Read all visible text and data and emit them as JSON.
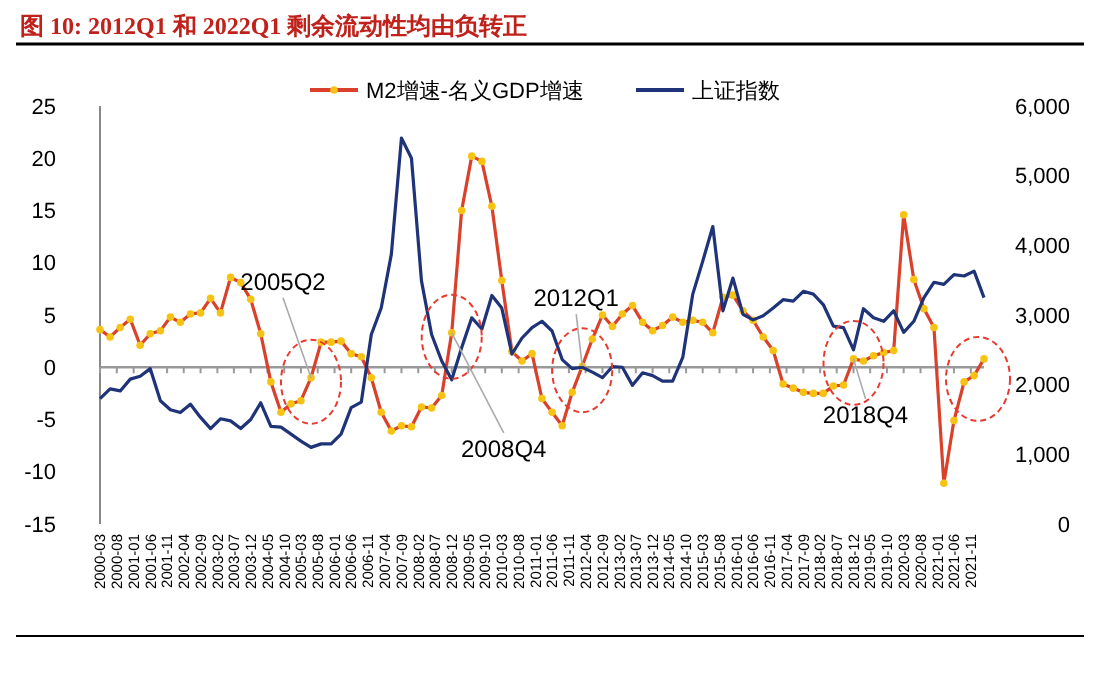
{
  "chart_data": {
    "type": "line",
    "title": "图 10: 2012Q1 和 2022Q1 剩余流动性均由负转正",
    "x": [
      "2000-03",
      "2000-06",
      "2000-09",
      "2000-12",
      "2001-03",
      "2001-06",
      "2001-09",
      "2001-12",
      "2002-03",
      "2002-06",
      "2002-09",
      "2002-12",
      "2003-03",
      "2003-06",
      "2003-09",
      "2003-12",
      "2004-03",
      "2004-06",
      "2004-09",
      "2004-12",
      "2005-03",
      "2005-06",
      "2005-09",
      "2005-12",
      "2006-03",
      "2006-06",
      "2006-09",
      "2006-12",
      "2007-03",
      "2007-06",
      "2007-09",
      "2007-12",
      "2008-03",
      "2008-06",
      "2008-09",
      "2008-12",
      "2009-03",
      "2009-06",
      "2009-09",
      "2009-12",
      "2010-03",
      "2010-06",
      "2010-09",
      "2010-12",
      "2011-03",
      "2011-06",
      "2011-09",
      "2011-12",
      "2012-03",
      "2012-06",
      "2012-09",
      "2012-12",
      "2013-03",
      "2013-06",
      "2013-09",
      "2013-12",
      "2014-03",
      "2014-06",
      "2014-09",
      "2014-12",
      "2015-03",
      "2015-06",
      "2015-09",
      "2015-12",
      "2016-03",
      "2016-06",
      "2016-09",
      "2016-12",
      "2017-03",
      "2017-06",
      "2017-09",
      "2017-12",
      "2018-03",
      "2018-06",
      "2018-09",
      "2018-12",
      "2019-03",
      "2019-06",
      "2019-09",
      "2019-12",
      "2020-03",
      "2020-06",
      "2020-09",
      "2020-12",
      "2021-03",
      "2021-06",
      "2021-09",
      "2021-12",
      "2022-03"
    ],
    "series": [
      {
        "name": "M2增速-名义GDP增速",
        "color": "#d9412b",
        "marker": "circle",
        "values": [
          3.6,
          2.9,
          3.8,
          4.6,
          2.1,
          3.2,
          3.5,
          4.8,
          4.3,
          5.1,
          5.2,
          6.6,
          5.2,
          8.6,
          8.1,
          6.5,
          3.2,
          -1.4,
          -4.3,
          -3.5,
          -3.2,
          -1.0,
          2.4,
          2.4,
          2.5,
          1.3,
          1.0,
          -1.0,
          -4.3,
          -6.1,
          -5.6,
          -5.7,
          -3.8,
          -3.9,
          -2.7,
          3.3,
          15,
          20.2,
          19.7,
          15.4,
          8.3,
          1.5,
          0.6,
          1.3,
          -3.0,
          -4.3,
          -5.6,
          -2.4,
          0.1,
          2.7,
          5.0,
          3.9,
          5.1,
          5.9,
          4.3,
          3.5,
          4.0,
          4.8,
          4.3,
          4.5,
          4.3,
          3.3,
          6.7,
          6.9,
          5.4,
          4.5,
          2.9,
          1.6,
          -1.6,
          -2.0,
          -2.4,
          -2.5,
          -2.5,
          -1.8,
          -1.7,
          0.8,
          0.6,
          1.1,
          1.4,
          1.6,
          14.6,
          8.4,
          5.6,
          3.8,
          -11.1,
          -5.1,
          -1.4,
          -0.8,
          0.8
        ]
      },
      {
        "name": "上证指数",
        "color": "#1f3478",
        "axis": "y2",
        "marker": "none",
        "values": [
          1800,
          1940,
          1910,
          2080,
          2120,
          2230,
          1770,
          1640,
          1600,
          1720,
          1530,
          1370,
          1510,
          1480,
          1370,
          1500,
          1740,
          1400,
          1390,
          1290,
          1190,
          1100,
          1150,
          1150,
          1290,
          1670,
          1750,
          2720,
          3100,
          3870,
          5540,
          5250,
          3490,
          2720,
          2340,
          2070,
          2530,
          2960,
          2800,
          3280,
          3100,
          2440,
          2670,
          2820,
          2910,
          2770,
          2360,
          2230,
          2250,
          2180,
          2100,
          2260,
          2250,
          1990,
          2170,
          2130,
          2050,
          2050,
          2390,
          3300,
          3770,
          4270,
          3060,
          3530,
          3010,
          2930,
          2990,
          3100,
          3220,
          3200,
          3340,
          3300,
          3150,
          2840,
          2820,
          2500,
          3090,
          2960,
          2910,
          3060,
          2750,
          2910,
          3250,
          3470,
          3440,
          3580,
          3560,
          3630,
          3250
        ]
      }
    ],
    "xlim": [
      "2000-03",
      "2022-03"
    ],
    "xticks": [
      "2000-03",
      "2000-08",
      "2001-01",
      "2001-06",
      "2001-11",
      "2002-04",
      "2002-09",
      "2003-02",
      "2003-07",
      "2003-12",
      "2004-05",
      "2004-10",
      "2005-03",
      "2005-08",
      "2006-01",
      "2006-06",
      "2006-11",
      "2007-04",
      "2007-09",
      "2008-02",
      "2008-07",
      "2008-12",
      "2009-05",
      "2009-10",
      "2010-03",
      "2010-08",
      "2011-01",
      "2011-06",
      "2011-11",
      "2012-04",
      "2012-09",
      "2013-02",
      "2013-07",
      "2013-12",
      "2014-05",
      "2014-10",
      "2015-03",
      "2015-08",
      "2016-01",
      "2016-06",
      "2016-11",
      "2017-04",
      "2017-09",
      "2018-02",
      "2018-07",
      "2018-12",
      "2019-05",
      "2019-10",
      "2020-03",
      "2020-08",
      "2021-01",
      "2021-06",
      "2021-11"
    ],
    "ylim": [
      -15,
      25
    ],
    "yticks": [
      -15,
      -10,
      -5,
      0,
      5,
      10,
      15,
      20,
      25
    ],
    "y2lim": [
      0,
      6000
    ],
    "y2ticks": [
      {
        "value": 0,
        "label": "0"
      },
      {
        "value": 1000,
        "label": "1,000"
      },
      {
        "value": 2000,
        "label": "2,000"
      },
      {
        "value": 3000,
        "label": "3,000"
      },
      {
        "value": 4000,
        "label": "4,000"
      },
      {
        "value": 5000,
        "label": "5,000"
      },
      {
        "value": 6000,
        "label": "6,000"
      }
    ],
    "legend": "top",
    "line_style": "solid",
    "annotations": [
      {
        "text": "2005Q2",
        "x": "2005-06",
        "y": -1.0
      },
      {
        "text": "2008Q4",
        "x": "2008-12",
        "y": 3.3
      },
      {
        "text": "2012Q1",
        "x": "2012-03",
        "y": 0.1
      },
      {
        "text": "2018Q4",
        "x": "2018-12",
        "y": 0.8
      }
    ]
  }
}
